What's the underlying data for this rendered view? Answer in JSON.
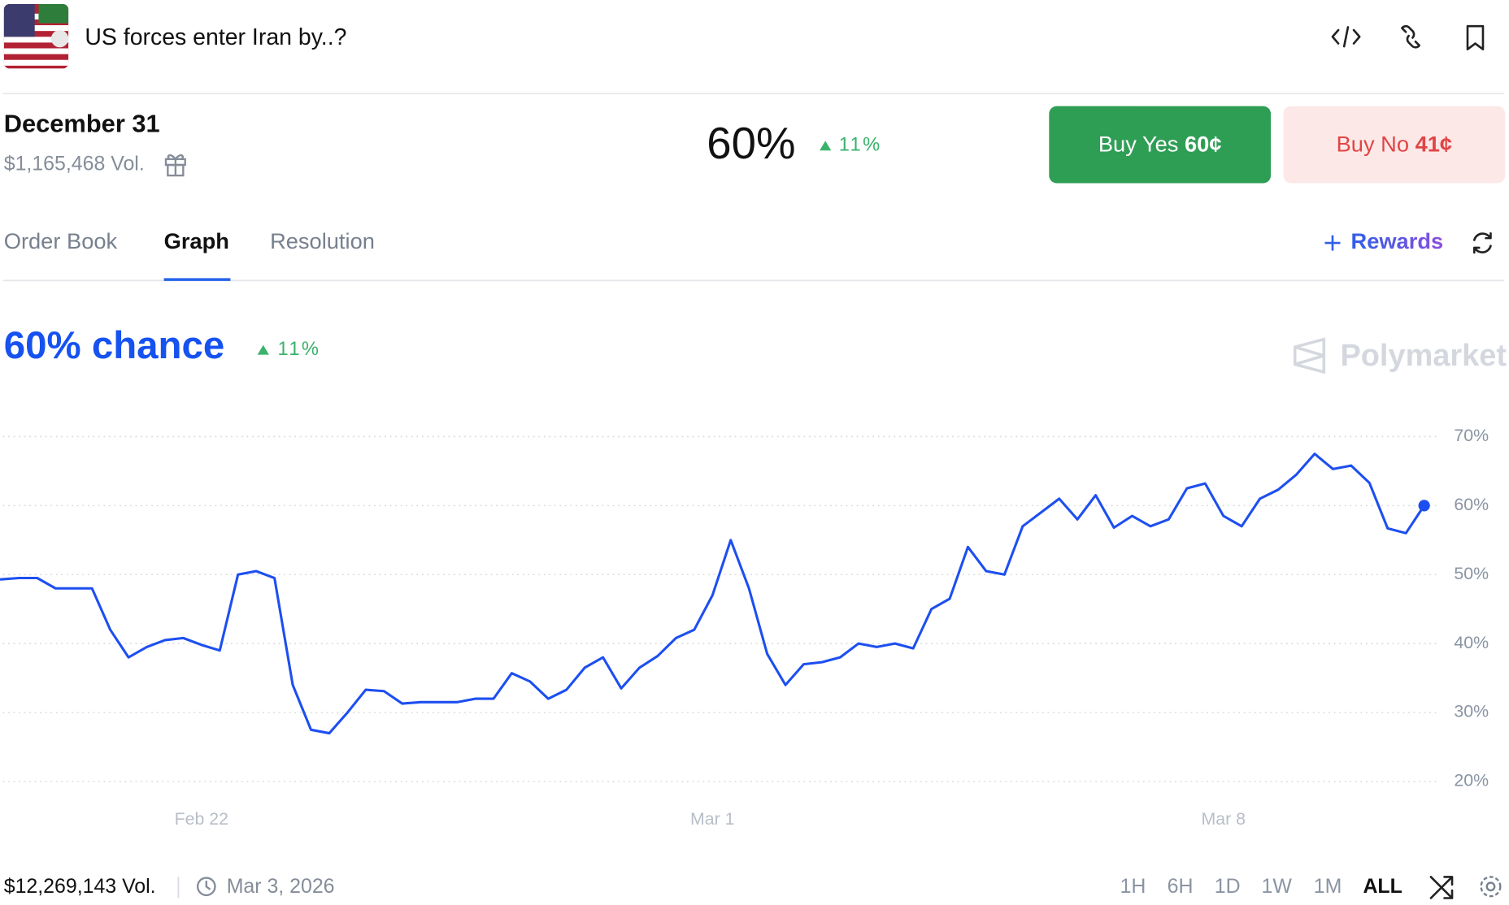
{
  "header": {
    "title": "US forces enter Iran by..?"
  },
  "market": {
    "date": "December 31",
    "volume": "$1,165,468 Vol.",
    "price": "60%",
    "change": "11%",
    "buy_yes": {
      "label": "Buy Yes",
      "price": "60¢"
    },
    "buy_no": {
      "label": "Buy No",
      "price": "41¢"
    }
  },
  "tabs": [
    "Order Book",
    "Graph",
    "Resolution"
  ],
  "rewards": "Rewards",
  "watermark": "Polymarket",
  "chart_data": {
    "type": "line",
    "title": "60% chance",
    "change": "11%",
    "color": "#1d4ff0",
    "categories": [
      null,
      null,
      null,
      null,
      null,
      null,
      null,
      null,
      null,
      null,
      null,
      "Feb 22",
      null,
      null,
      null,
      null,
      null,
      null,
      null,
      null,
      null,
      null,
      null,
      null,
      null,
      null,
      null,
      null,
      null,
      null,
      null,
      null,
      null,
      null,
      null,
      null,
      null,
      null,
      null,
      "Mar 1",
      null,
      null,
      null,
      null,
      null,
      null,
      null,
      null,
      null,
      null,
      null,
      null,
      null,
      null,
      null,
      null,
      null,
      null,
      null,
      null,
      null,
      null,
      null,
      null,
      null,
      null,
      null,
      "Mar 8",
      null,
      null,
      null,
      null,
      null,
      null,
      null,
      null,
      null,
      null,
      null
    ],
    "values": [
      49.3,
      49.5,
      49.5,
      48,
      48,
      48,
      42,
      38,
      39.5,
      40.5,
      40.8,
      39.8,
      39,
      50,
      50.5,
      49.5,
      34,
      27.5,
      27,
      30,
      33.3,
      33.1,
      31.3,
      31.5,
      31.5,
      31.5,
      32,
      32,
      35.7,
      34.5,
      32,
      33.3,
      36.5,
      38,
      33.5,
      36.5,
      38.2,
      40.8,
      42,
      47,
      55,
      48,
      38.5,
      34,
      37,
      37.3,
      38,
      40,
      39.5,
      40,
      39.3,
      45,
      46.5,
      54,
      50.5,
      50,
      57,
      59,
      61,
      58,
      61.5,
      56.8,
      58.5,
      57,
      58,
      62.5,
      63.2,
      58.5,
      57,
      61,
      62.3,
      64.5,
      67.5,
      65.3,
      65.8,
      63.3,
      56.7,
      56,
      60
    ],
    "ylim": [
      20,
      70
    ],
    "yticks": [
      {
        "value": 20,
        "label": "20%"
      },
      {
        "value": 30,
        "label": "30%"
      },
      {
        "value": 40,
        "label": "40%"
      },
      {
        "value": 50,
        "label": "50%"
      },
      {
        "value": 60,
        "label": "60%"
      },
      {
        "value": 70,
        "label": "70%"
      }
    ],
    "grid": true
  },
  "footer": {
    "volume": "$12,269,143 Vol.",
    "date": "Mar 3, 2026",
    "ranges": [
      "1H",
      "6H",
      "1D",
      "1W",
      "1M",
      "ALL"
    ],
    "active_range": "ALL"
  }
}
